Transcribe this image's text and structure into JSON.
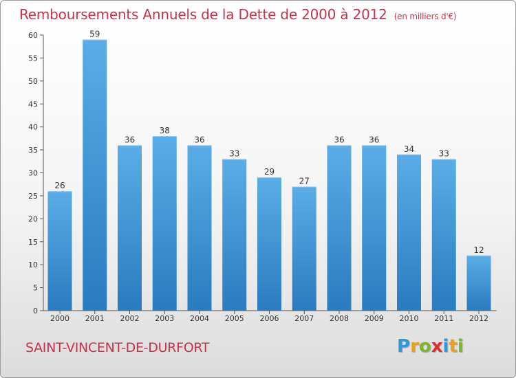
{
  "header": {
    "title": "Remboursements Annuels de la Dette de 2000 à 2012",
    "unit": "(en milliers d'€)"
  },
  "footer": {
    "commune": "SAINT-VINCENT-DE-DURFORT",
    "logo": "Proxiti"
  },
  "colors": {
    "accent": "#c8314a",
    "bar_light": "#5aade6",
    "bar_dark": "#2a7bbf"
  },
  "chart_data": {
    "type": "bar",
    "title": "Remboursements Annuels de la Dette de 2000 à 2012",
    "ylabel": "(en milliers d'€)",
    "xlabel": "",
    "categories": [
      "2000",
      "2001",
      "2002",
      "2003",
      "2004",
      "2005",
      "2006",
      "2007",
      "2008",
      "2009",
      "2010",
      "2011",
      "2012"
    ],
    "values": [
      26,
      59,
      36,
      38,
      36,
      33,
      29,
      27,
      36,
      36,
      34,
      33,
      12
    ],
    "ylim": [
      0,
      60
    ],
    "yticks": [
      0,
      5,
      10,
      15,
      20,
      25,
      30,
      35,
      40,
      45,
      50,
      55,
      60
    ],
    "grid": false
  }
}
